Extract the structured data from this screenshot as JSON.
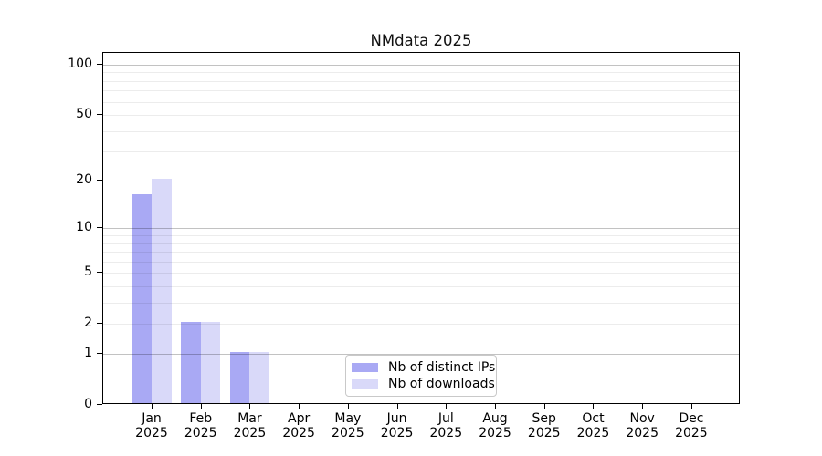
{
  "chart_data": {
    "type": "bar",
    "title": "NMdata 2025",
    "categories": [
      "Jan 2025",
      "Feb 2025",
      "Mar 2025",
      "Apr 2025",
      "May 2025",
      "Jun 2025",
      "Jul 2025",
      "Aug 2025",
      "Sep 2025",
      "Oct 2025",
      "Nov 2025",
      "Dec 2025"
    ],
    "series": [
      {
        "name": "Nb of distinct IPs",
        "color": "#a9a9f4",
        "values": [
          16,
          2,
          1,
          0,
          0,
          0,
          0,
          0,
          0,
          0,
          0,
          0
        ]
      },
      {
        "name": "Nb of downloads",
        "color": "#d9d9f9",
        "values": [
          20,
          2,
          1,
          0,
          0,
          0,
          0,
          0,
          0,
          0,
          0,
          0
        ]
      }
    ],
    "xlabel": "",
    "ylabel": "",
    "yscale": "log1p",
    "ylim": [
      0,
      117
    ],
    "y_tick_values": [
      0,
      1,
      2,
      5,
      10,
      20,
      50,
      100
    ],
    "y_tick_labels": [
      "0",
      "1",
      "2",
      "5",
      "10",
      "20",
      "50",
      "100"
    ],
    "major_gridline_values": [
      1,
      10,
      100
    ],
    "minor_gridline_values": [
      2,
      3,
      4,
      5,
      6,
      7,
      8,
      9,
      20,
      30,
      40,
      50,
      60,
      70,
      80,
      90
    ],
    "grid": "both, drawn over bars",
    "legend_position": "lower center inside plot"
  },
  "colors": {
    "background": "#ffffff",
    "axis_border": "#000000",
    "text": "#000000",
    "bar_distinct_ips": "#a9a9f4",
    "bar_downloads": "#d9d9f9",
    "legend_border": "#c9c9c9"
  }
}
